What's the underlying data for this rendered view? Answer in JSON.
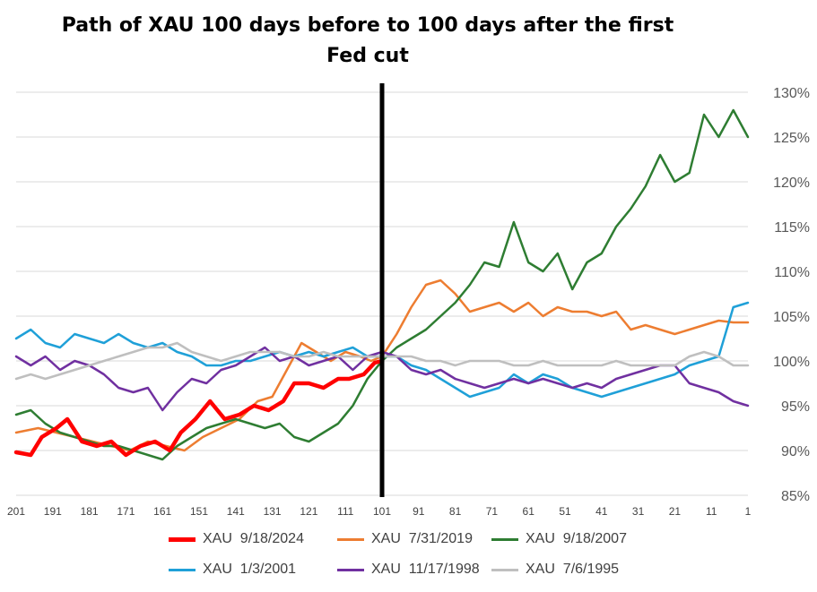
{
  "chart_data": {
    "type": "line",
    "title": "Path of XAU 100 days before to 100 days after the first Fed cut",
    "title_lines": [
      "Path of XAU 100 days before to 100 days after the first",
      "Fed cut"
    ],
    "xlabel": "",
    "ylabel": "",
    "x_ticks": [
      201,
      191,
      181,
      171,
      161,
      151,
      141,
      131,
      121,
      111,
      101,
      91,
      81,
      71,
      61,
      51,
      41,
      31,
      21,
      11,
      1
    ],
    "x_range": [
      201,
      1
    ],
    "x_reversed": true,
    "y_ticks": [
      "85%",
      "90%",
      "95%",
      "100%",
      "105%",
      "110%",
      "115%",
      "120%",
      "125%",
      "130%"
    ],
    "ylim": [
      85,
      130
    ],
    "y_axis_position": "right",
    "grid": "horizontal",
    "vertical_marker_x": 101,
    "legend_position": "bottom",
    "series": [
      {
        "name": "XAU  9/18/2024",
        "color": "#ff0000",
        "x": [
          201,
          197,
          194,
          190,
          187,
          183,
          179,
          175,
          171,
          167,
          163,
          159,
          156,
          152,
          148,
          144,
          140,
          136,
          132,
          128,
          125,
          121,
          117,
          113,
          110,
          106,
          103,
          101
        ],
        "values": [
          89.8,
          89.5,
          91.5,
          92.5,
          93.5,
          91.0,
          90.5,
          91.0,
          89.5,
          90.5,
          91.0,
          90.0,
          92.0,
          93.5,
          95.5,
          93.5,
          94.0,
          95.0,
          94.5,
          95.5,
          97.5,
          97.5,
          97.0,
          98.0,
          98.0,
          98.5,
          99.8,
          100.0
        ]
      },
      {
        "name": "XAU  7/31/2019",
        "color": "#ed7d31",
        "x": [
          201,
          195,
          190,
          185,
          180,
          175,
          170,
          165,
          160,
          155,
          150,
          145,
          140,
          135,
          131,
          127,
          123,
          119,
          115,
          111,
          107,
          104,
          101,
          97,
          93,
          89,
          85,
          81,
          77,
          73,
          69,
          65,
          61,
          57,
          53,
          49,
          45,
          41,
          37,
          33,
          29,
          25,
          21,
          17,
          13,
          9,
          5,
          1
        ],
        "values": [
          92.0,
          92.5,
          92.0,
          91.5,
          91.0,
          90.5,
          90.0,
          91.0,
          90.5,
          90.0,
          91.5,
          92.5,
          93.5,
          95.5,
          96.0,
          99.0,
          102.0,
          101.0,
          100.0,
          101.0,
          100.5,
          100.0,
          100.5,
          103.0,
          106.0,
          108.5,
          109.0,
          107.5,
          105.5,
          106.0,
          106.5,
          105.5,
          106.5,
          105.0,
          106.0,
          105.5,
          105.5,
          105.0,
          105.5,
          103.5,
          104.0,
          103.5,
          103.0,
          103.5,
          104.0,
          104.5,
          104.3,
          104.3
        ]
      },
      {
        "name": "XAU  9/18/2007",
        "color": "#2e7d32",
        "x": [
          201,
          197,
          193,
          189,
          185,
          181,
          177,
          173,
          169,
          165,
          161,
          157,
          153,
          149,
          145,
          141,
          137,
          133,
          129,
          125,
          121,
          117,
          113,
          109,
          105,
          101,
          97,
          93,
          89,
          85,
          81,
          77,
          73,
          69,
          65,
          61,
          57,
          53,
          49,
          45,
          41,
          37,
          33,
          29,
          25,
          21,
          17,
          13,
          9,
          5,
          1
        ],
        "values": [
          94.0,
          94.5,
          93.0,
          92.0,
          91.5,
          91.0,
          90.5,
          90.5,
          90.0,
          89.5,
          89.0,
          90.5,
          91.5,
          92.5,
          93.0,
          93.5,
          93.0,
          92.5,
          93.0,
          91.5,
          91.0,
          92.0,
          93.0,
          95.0,
          98.0,
          100.0,
          101.5,
          102.5,
          103.5,
          105.0,
          106.5,
          108.5,
          111.0,
          110.5,
          115.5,
          111.0,
          110.0,
          112.0,
          108.0,
          111.0,
          112.0,
          115.0,
          117.0,
          119.5,
          123.0,
          120.0,
          121.0,
          127.5,
          125.0,
          128.0,
          125.0
        ]
      },
      {
        "name": "XAU  1/3/2001",
        "color": "#1fa0d8",
        "x": [
          201,
          197,
          193,
          189,
          185,
          181,
          177,
          173,
          169,
          165,
          161,
          157,
          153,
          149,
          145,
          141,
          137,
          133,
          129,
          125,
          121,
          117,
          113,
          109,
          105,
          101,
          97,
          93,
          89,
          85,
          81,
          77,
          73,
          69,
          65,
          61,
          57,
          53,
          49,
          45,
          41,
          37,
          33,
          29,
          25,
          21,
          17,
          13,
          9,
          5,
          1
        ],
        "values": [
          102.5,
          103.5,
          102.0,
          101.5,
          103.0,
          102.5,
          102.0,
          103.0,
          102.0,
          101.5,
          102.0,
          101.0,
          100.5,
          99.5,
          99.5,
          100.0,
          100.0,
          100.5,
          101.0,
          100.5,
          101.0,
          100.5,
          101.0,
          101.5,
          100.5,
          100.5,
          100.5,
          99.5,
          99.0,
          98.0,
          97.0,
          96.0,
          96.5,
          97.0,
          98.5,
          97.5,
          98.5,
          98.0,
          97.0,
          96.5,
          96.0,
          96.5,
          97.0,
          97.5,
          98.0,
          98.5,
          99.5,
          100.0,
          100.5,
          106.0,
          106.5
        ]
      },
      {
        "name": "XAU  11/17/1998",
        "color": "#7030a0",
        "x": [
          201,
          197,
          193,
          189,
          185,
          181,
          177,
          173,
          169,
          165,
          161,
          157,
          153,
          149,
          145,
          141,
          137,
          133,
          129,
          125,
          121,
          117,
          113,
          109,
          105,
          101,
          97,
          93,
          89,
          85,
          81,
          77,
          73,
          69,
          65,
          61,
          57,
          53,
          49,
          45,
          41,
          37,
          33,
          29,
          25,
          21,
          17,
          13,
          9,
          5,
          1
        ],
        "values": [
          100.5,
          99.5,
          100.5,
          99.0,
          100.0,
          99.5,
          98.5,
          97.0,
          96.5,
          97.0,
          94.5,
          96.5,
          98.0,
          97.5,
          99.0,
          99.5,
          100.5,
          101.5,
          100.0,
          100.5,
          99.5,
          100.0,
          100.5,
          99.0,
          100.5,
          101.0,
          100.5,
          99.0,
          98.5,
          99.0,
          98.0,
          97.5,
          97.0,
          97.5,
          98.0,
          97.5,
          98.0,
          97.5,
          97.0,
          97.5,
          97.0,
          98.0,
          98.5,
          99.0,
          99.5,
          99.5,
          97.5,
          97.0,
          96.5,
          95.5,
          95.0
        ]
      },
      {
        "name": "XAU  7/6/1995",
        "color": "#bfbfbf",
        "x": [
          201,
          197,
          193,
          189,
          185,
          181,
          177,
          173,
          169,
          165,
          161,
          157,
          153,
          149,
          145,
          141,
          137,
          133,
          129,
          125,
          121,
          117,
          113,
          109,
          105,
          101,
          97,
          93,
          89,
          85,
          81,
          77,
          73,
          69,
          65,
          61,
          57,
          53,
          49,
          45,
          41,
          37,
          33,
          29,
          25,
          21,
          17,
          13,
          9,
          5,
          1
        ],
        "values": [
          98.0,
          98.5,
          98.0,
          98.5,
          99.0,
          99.5,
          100.0,
          100.5,
          101.0,
          101.5,
          101.5,
          102.0,
          101.0,
          100.5,
          100.0,
          100.5,
          101.0,
          101.0,
          101.0,
          100.5,
          100.5,
          101.0,
          100.5,
          100.5,
          100.5,
          100.5,
          100.5,
          100.5,
          100.0,
          100.0,
          99.5,
          100.0,
          100.0,
          100.0,
          99.5,
          99.5,
          100.0,
          99.5,
          99.5,
          99.5,
          99.5,
          100.0,
          99.5,
          99.5,
          99.5,
          99.5,
          100.5,
          101.0,
          100.5,
          99.5,
          99.5
        ]
      }
    ]
  }
}
